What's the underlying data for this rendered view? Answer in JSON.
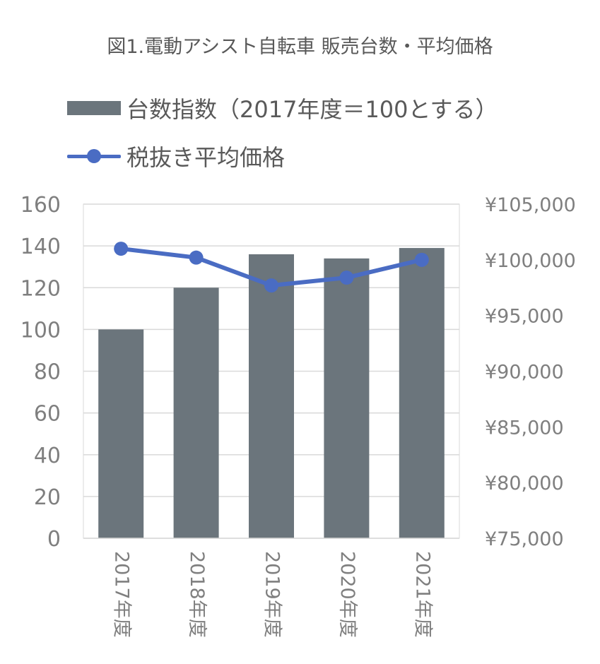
{
  "title": "図1.電動アシスト自転車 販売台数・平均価格",
  "legend": {
    "bar_label": "台数指数（2017年度＝100とする）",
    "line_label": "税抜き平均価格"
  },
  "colors": {
    "bar": "#6b757c",
    "line": "#4a6cc3",
    "grid": "#d9d9d9",
    "text": "#595959"
  },
  "chart_data": {
    "type": "bar",
    "categories": [
      "2017年度",
      "2018年度",
      "2019年度",
      "2020年度",
      "2021年度"
    ],
    "series": [
      {
        "name": "台数指数（2017年度＝100とする）",
        "type": "bar",
        "axis": "left",
        "values": [
          100,
          120,
          136,
          134,
          139
        ]
      },
      {
        "name": "税抜き平均価格",
        "type": "line",
        "axis": "right",
        "values": [
          101000,
          100200,
          97700,
          98400,
          100000
        ]
      }
    ],
    "y_left": {
      "min": 0,
      "max": 160,
      "ticks": [
        "0",
        "20",
        "40",
        "60",
        "80",
        "100",
        "120",
        "140",
        "160"
      ]
    },
    "y_right": {
      "min": 75000,
      "max": 105000,
      "ticks": [
        "¥75,000",
        "¥80,000",
        "¥85,000",
        "¥90,000",
        "¥95,000",
        "¥100,000",
        "¥105,000"
      ]
    },
    "grid": true,
    "legend_position": "top"
  }
}
